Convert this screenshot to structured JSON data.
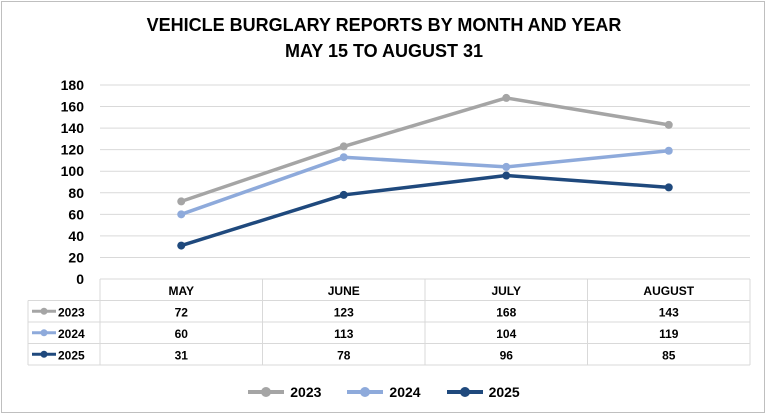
{
  "title_line1": "VEHICLE BURGLARY REPORTS BY MONTH AND YEAR",
  "title_line2": "MAY 15 TO AUGUST 31",
  "chart_data": {
    "type": "line",
    "title": "VEHICLE BURGLARY REPORTS BY MONTH AND YEAR MAY 15 TO AUGUST 31",
    "categories": [
      "MAY",
      "JUNE",
      "JULY",
      "AUGUST"
    ],
    "ylim": [
      0,
      180
    ],
    "yticks": [
      0,
      20,
      40,
      60,
      80,
      100,
      120,
      140,
      160,
      180
    ],
    "grid": true,
    "legend": "bottom",
    "data_table": true,
    "series": [
      {
        "name": "2023",
        "color": "#a5a5a5",
        "values": [
          72,
          123,
          168,
          143
        ]
      },
      {
        "name": "2024",
        "color": "#8eaadb",
        "values": [
          60,
          113,
          104,
          119
        ]
      },
      {
        "name": "2025",
        "color": "#1f497d",
        "values": [
          31,
          78,
          96,
          85
        ]
      }
    ]
  }
}
